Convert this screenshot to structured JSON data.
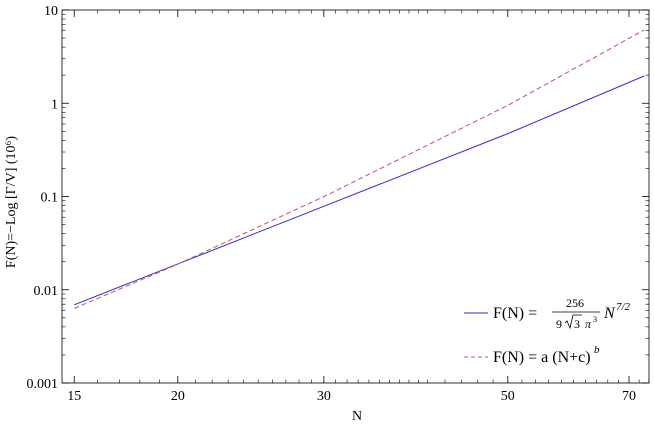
{
  "chart_data": {
    "type": "line",
    "title": "",
    "xlabel": "N",
    "ylabel": "F(N)=−Log [Γ/V] (10⁶)",
    "x_scale": "log",
    "y_scale": "log",
    "xlim": [
      14.5,
      74
    ],
    "ylim": [
      0.001,
      10
    ],
    "x_ticks": [
      15,
      20,
      30,
      50,
      70
    ],
    "x_tick_labels": [
      "15",
      "20",
      "30",
      "50",
      "70"
    ],
    "y_ticks": [
      0.001,
      0.01,
      0.1,
      1,
      10
    ],
    "y_tick_labels": [
      "0.001",
      "0.01",
      "0.1",
      "1",
      "10"
    ],
    "grid": false,
    "legend_position": "bottom-right",
    "series": [
      {
        "name": "F(N) = 256 / (9 √3 π³) N^(7/2)",
        "color": "#2b2bd9",
        "style": "solid",
        "x": [
          15,
          20,
          30,
          50,
          73
        ],
        "y": [
          0.0069,
          0.0189,
          0.0785,
          0.472,
          1.96
        ]
      },
      {
        "name": "F(N) = a (N+c)^b",
        "color": "#c0545f",
        "style": "dashed",
        "x": [
          15,
          20,
          30,
          50,
          73
        ],
        "y": [
          0.0063,
          0.0188,
          0.0997,
          0.95,
          6.1
        ]
      }
    ]
  },
  "legend": {
    "entry1": {
      "lhs": "F(N) = ",
      "numerator": "256",
      "denominator_coef": "9",
      "sqrt_arg": "3",
      "pi": "π",
      "pi_exp": "3",
      "n_base": "N",
      "n_exp": "7/2"
    },
    "entry2": {
      "text": "F(N) = a (N+c)",
      "exp": "b"
    }
  }
}
